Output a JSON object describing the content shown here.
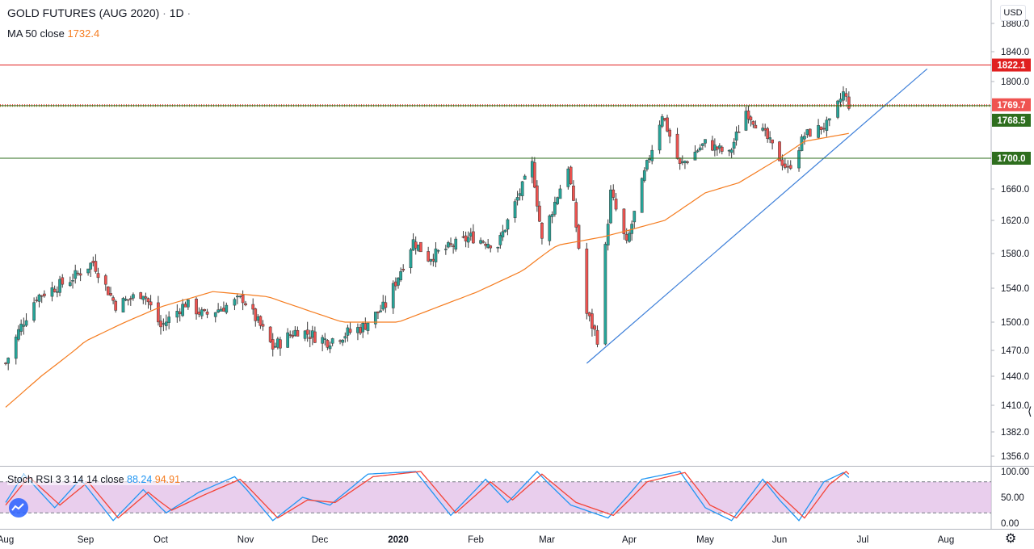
{
  "header": {
    "symbol": "GOLD FUTURES (AUG 2020)",
    "separator": "·",
    "interval": "1D",
    "ma_label": "MA 50 close",
    "ma_value": "1732.4",
    "currency": "USD"
  },
  "stoch": {
    "label": "Stoch RSI 3 3 14 14 close",
    "k_value": "88.24",
    "d_value": "94.91",
    "axis_labels": [
      "100.00",
      "50.00",
      "0.00"
    ]
  },
  "colors": {
    "up": "#26a69a",
    "down": "#ef5350",
    "ma": "#f57c1f",
    "trendline": "#3d7fd9",
    "resistance": "#e02020",
    "support": "#2e6e1e",
    "k_line": "#2196f3",
    "d_line": "#f44336",
    "stoch_band": "#e1bee7"
  },
  "chart_data": {
    "type": "candlestick",
    "title": "GOLD FUTURES (AUG 2020) · 1D",
    "ylabel": "USD",
    "ylim": [
      1346,
      1910
    ],
    "y_ticks": [
      1880.0,
      1840.0,
      1800.0,
      1660.0,
      1620.0,
      1580.0,
      1540.0,
      1500.0,
      1470.0,
      1440.0,
      1410.0,
      1382.0,
      1356.0
    ],
    "x_ticks": [
      "Aug",
      "Sep",
      "Oct",
      "Nov",
      "Dec",
      "2020",
      "Feb",
      "Mar",
      "Apr",
      "May",
      "Jun",
      "Jul",
      "Aug"
    ],
    "x_tick_dates": [
      "2019-08-01",
      "2019-09-01",
      "2019-10-01",
      "2019-11-01",
      "2019-12-01",
      "2020-01-01",
      "2020-02-01",
      "2020-03-01",
      "2020-04-01",
      "2020-05-01",
      "2020-06-01",
      "2020-07-01",
      "2020-08-01"
    ],
    "horizontal_lines": [
      {
        "value": 1822.1,
        "label": "1822.1",
        "style": "solid",
        "color": "#e02020"
      },
      {
        "value": 1769.7,
        "label": "1769.7",
        "style": "dotted",
        "color": "#ef5350"
      },
      {
        "value": 1768.5,
        "label": "1768.5",
        "style": "solid",
        "color": "#2e6e1e"
      },
      {
        "value": 1700.0,
        "label": "1700.0",
        "style": "solid",
        "color": "#2e6e1e"
      }
    ],
    "trendline": {
      "from": {
        "date": "2020-03-16",
        "value": 1455
      },
      "to": {
        "date": "2020-07-25",
        "value": 1817
      }
    },
    "close_path": [
      {
        "date": "2019-08-01",
        "value": 1455
      },
      {
        "date": "2019-08-06",
        "value": 1490
      },
      {
        "date": "2019-08-13",
        "value": 1530
      },
      {
        "date": "2019-08-26",
        "value": 1550
      },
      {
        "date": "2019-09-04",
        "value": 1570
      },
      {
        "date": "2019-09-13",
        "value": 1520
      },
      {
        "date": "2019-09-24",
        "value": 1535
      },
      {
        "date": "2019-10-01",
        "value": 1495
      },
      {
        "date": "2019-10-10",
        "value": 1522
      },
      {
        "date": "2019-10-17",
        "value": 1508
      },
      {
        "date": "2019-10-31",
        "value": 1528
      },
      {
        "date": "2019-11-06",
        "value": 1500
      },
      {
        "date": "2019-11-12",
        "value": 1473
      },
      {
        "date": "2019-11-22",
        "value": 1492
      },
      {
        "date": "2019-12-04",
        "value": 1480
      },
      {
        "date": "2019-12-18",
        "value": 1495
      },
      {
        "date": "2019-12-27",
        "value": 1520
      },
      {
        "date": "2020-01-07",
        "value": 1595
      },
      {
        "date": "2020-01-13",
        "value": 1575
      },
      {
        "date": "2020-01-30",
        "value": 1600
      },
      {
        "date": "2020-02-10",
        "value": 1590
      },
      {
        "date": "2020-02-24",
        "value": 1692
      },
      {
        "date": "2020-02-28",
        "value": 1595
      },
      {
        "date": "2020-03-09",
        "value": 1690
      },
      {
        "date": "2020-03-16",
        "value": 1510
      },
      {
        "date": "2020-03-20",
        "value": 1483
      },
      {
        "date": "2020-03-25",
        "value": 1655
      },
      {
        "date": "2020-03-31",
        "value": 1590
      },
      {
        "date": "2020-04-07",
        "value": 1680
      },
      {
        "date": "2020-04-14",
        "value": 1758
      },
      {
        "date": "2020-04-21",
        "value": 1690
      },
      {
        "date": "2020-05-01",
        "value": 1720
      },
      {
        "date": "2020-05-11",
        "value": 1705
      },
      {
        "date": "2020-05-18",
        "value": 1762
      },
      {
        "date": "2020-05-26",
        "value": 1730
      },
      {
        "date": "2020-06-04",
        "value": 1685
      },
      {
        "date": "2020-06-10",
        "value": 1730
      },
      {
        "date": "2020-06-19",
        "value": 1745
      },
      {
        "date": "2020-06-24",
        "value": 1785
      },
      {
        "date": "2020-06-26",
        "value": 1770
      }
    ],
    "ma50_path": [
      {
        "date": "2019-08-01",
        "value": 1408
      },
      {
        "date": "2019-09-01",
        "value": 1480
      },
      {
        "date": "2019-10-01",
        "value": 1518
      },
      {
        "date": "2019-10-20",
        "value": 1536
      },
      {
        "date": "2019-11-10",
        "value": 1530
      },
      {
        "date": "2019-12-10",
        "value": 1500
      },
      {
        "date": "2020-01-01",
        "value": 1500
      },
      {
        "date": "2020-02-01",
        "value": 1535
      },
      {
        "date": "2020-02-20",
        "value": 1560
      },
      {
        "date": "2020-03-05",
        "value": 1590
      },
      {
        "date": "2020-03-22",
        "value": 1600
      },
      {
        "date": "2020-04-15",
        "value": 1620
      },
      {
        "date": "2020-05-01",
        "value": 1655
      },
      {
        "date": "2020-05-15",
        "value": 1668
      },
      {
        "date": "2020-06-01",
        "value": 1700
      },
      {
        "date": "2020-06-10",
        "value": 1722
      },
      {
        "date": "2020-06-26",
        "value": 1732.4
      }
    ],
    "stoch_rsi": {
      "ylim": [
        0,
        100
      ],
      "bands": [
        20,
        80
      ],
      "k_path": [
        {
          "date": "2019-08-01",
          "value": 40
        },
        {
          "date": "2019-08-08",
          "value": 95
        },
        {
          "date": "2019-08-20",
          "value": 30
        },
        {
          "date": "2019-08-30",
          "value": 85
        },
        {
          "date": "2019-09-12",
          "value": 5
        },
        {
          "date": "2019-09-24",
          "value": 65
        },
        {
          "date": "2019-10-03",
          "value": 20
        },
        {
          "date": "2019-10-15",
          "value": 60
        },
        {
          "date": "2019-10-28",
          "value": 90
        },
        {
          "date": "2019-11-12",
          "value": 5
        },
        {
          "date": "2019-11-24",
          "value": 50
        },
        {
          "date": "2019-12-05",
          "value": 35
        },
        {
          "date": "2019-12-20",
          "value": 95
        },
        {
          "date": "2020-01-08",
          "value": 100
        },
        {
          "date": "2020-01-22",
          "value": 15
        },
        {
          "date": "2020-02-05",
          "value": 85
        },
        {
          "date": "2020-02-14",
          "value": 40
        },
        {
          "date": "2020-02-26",
          "value": 100
        },
        {
          "date": "2020-03-10",
          "value": 35
        },
        {
          "date": "2020-03-24",
          "value": 10
        },
        {
          "date": "2020-04-06",
          "value": 85
        },
        {
          "date": "2020-04-21",
          "value": 100
        },
        {
          "date": "2020-05-01",
          "value": 30
        },
        {
          "date": "2020-05-12",
          "value": 5
        },
        {
          "date": "2020-05-25",
          "value": 85
        },
        {
          "date": "2020-06-08",
          "value": 5
        },
        {
          "date": "2020-06-17",
          "value": 80
        },
        {
          "date": "2020-06-24",
          "value": 98
        },
        {
          "date": "2020-06-26",
          "value": 88.24
        }
      ],
      "d_path": [
        {
          "date": "2019-08-01",
          "value": 35
        },
        {
          "date": "2019-08-10",
          "value": 90
        },
        {
          "date": "2019-08-22",
          "value": 35
        },
        {
          "date": "2019-09-02",
          "value": 80
        },
        {
          "date": "2019-09-14",
          "value": 10
        },
        {
          "date": "2019-09-26",
          "value": 60
        },
        {
          "date": "2019-10-05",
          "value": 25
        },
        {
          "date": "2019-10-17",
          "value": 55
        },
        {
          "date": "2019-10-30",
          "value": 85
        },
        {
          "date": "2019-11-14",
          "value": 10
        },
        {
          "date": "2019-11-26",
          "value": 45
        },
        {
          "date": "2019-12-07",
          "value": 40
        },
        {
          "date": "2019-12-22",
          "value": 90
        },
        {
          "date": "2020-01-10",
          "value": 100
        },
        {
          "date": "2020-01-24",
          "value": 20
        },
        {
          "date": "2020-02-07",
          "value": 80
        },
        {
          "date": "2020-02-16",
          "value": 45
        },
        {
          "date": "2020-02-28",
          "value": 95
        },
        {
          "date": "2020-03-12",
          "value": 40
        },
        {
          "date": "2020-03-26",
          "value": 15
        },
        {
          "date": "2020-04-08",
          "value": 80
        },
        {
          "date": "2020-04-23",
          "value": 98
        },
        {
          "date": "2020-05-03",
          "value": 35
        },
        {
          "date": "2020-05-14",
          "value": 10
        },
        {
          "date": "2020-05-27",
          "value": 80
        },
        {
          "date": "2020-06-10",
          "value": 10
        },
        {
          "date": "2020-06-19",
          "value": 75
        },
        {
          "date": "2020-06-25",
          "value": 100
        },
        {
          "date": "2020-06-26",
          "value": 94.91
        }
      ]
    }
  }
}
